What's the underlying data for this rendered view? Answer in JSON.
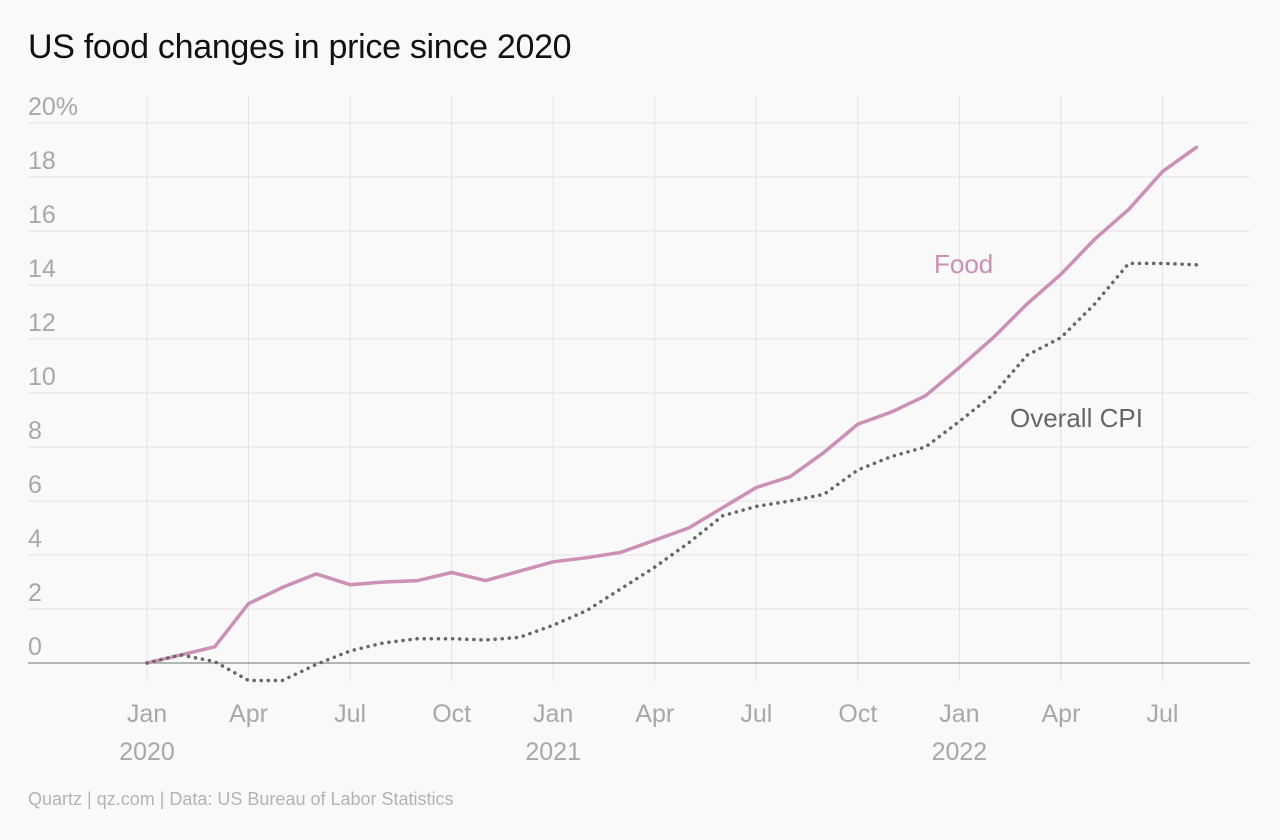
{
  "title": "US food changes in price since 2020",
  "source": "Quartz | qz.com | Data: US Bureau of Labor Statistics",
  "chart_data": {
    "type": "line",
    "title": "US food changes in price since 2020",
    "x_unit": "month",
    "x": [
      "2020-01",
      "2020-02",
      "2020-03",
      "2020-04",
      "2020-05",
      "2020-06",
      "2020-07",
      "2020-08",
      "2020-09",
      "2020-10",
      "2020-11",
      "2020-12",
      "2021-01",
      "2021-02",
      "2021-03",
      "2021-04",
      "2021-05",
      "2021-06",
      "2021-07",
      "2021-08",
      "2021-09",
      "2021-10",
      "2021-11",
      "2021-12",
      "2022-01",
      "2022-02",
      "2022-03",
      "2022-04",
      "2022-05",
      "2022-06",
      "2022-07",
      "2022-08"
    ],
    "series": [
      {
        "name": "Food",
        "color": "#cc8fb6",
        "style": "solid",
        "values": [
          0,
          0.3,
          0.6,
          2.2,
          2.8,
          3.3,
          2.9,
          3.0,
          3.05,
          3.35,
          3.05,
          3.4,
          3.75,
          3.9,
          4.1,
          4.55,
          5.0,
          5.75,
          6.5,
          6.9,
          7.8,
          8.85,
          9.3,
          9.9,
          10.95,
          12.05,
          13.3,
          14.4,
          15.7,
          16.8,
          18.2,
          19.1
        ]
      },
      {
        "name": "Overall CPI",
        "color": "#666666",
        "style": "dotted",
        "values": [
          0,
          0.3,
          0.05,
          -0.65,
          -0.65,
          -0.05,
          0.45,
          0.75,
          0.9,
          0.9,
          0.85,
          0.95,
          1.4,
          1.95,
          2.75,
          3.55,
          4.45,
          5.45,
          5.8,
          6.0,
          6.25,
          7.15,
          7.65,
          8.0,
          8.95,
          9.95,
          11.4,
          12.05,
          13.3,
          14.8,
          14.8,
          14.75
        ]
      }
    ],
    "y_ticks": [
      "20%",
      "18",
      "16",
      "14",
      "12",
      "10",
      "8",
      "6",
      "4",
      "2",
      "0"
    ],
    "y_tick_values": [
      20,
      18,
      16,
      14,
      12,
      10,
      8,
      6,
      4,
      2,
      0
    ],
    "ylim": [
      -1,
      20
    ],
    "x_ticks": [
      {
        "month": "2020-01",
        "label": "Jan",
        "year": "2020"
      },
      {
        "month": "2020-04",
        "label": "Apr",
        "year": ""
      },
      {
        "month": "2020-07",
        "label": "Jul",
        "year": ""
      },
      {
        "month": "2020-10",
        "label": "Oct",
        "year": ""
      },
      {
        "month": "2021-01",
        "label": "Jan",
        "year": "2021"
      },
      {
        "month": "2021-04",
        "label": "Apr",
        "year": ""
      },
      {
        "month": "2021-07",
        "label": "Jul",
        "year": ""
      },
      {
        "month": "2021-10",
        "label": "Oct",
        "year": ""
      },
      {
        "month": "2022-01",
        "label": "Jan",
        "year": "2022"
      },
      {
        "month": "2022-04",
        "label": "Apr",
        "year": ""
      },
      {
        "month": "2022-07",
        "label": "Jul",
        "year": ""
      }
    ],
    "xlim": [
      "2019-10",
      "2022-09"
    ],
    "grid": true,
    "legend": "inline labels near line ends",
    "series_labels": {
      "food": "Food",
      "cpi": "Overall CPI"
    }
  }
}
